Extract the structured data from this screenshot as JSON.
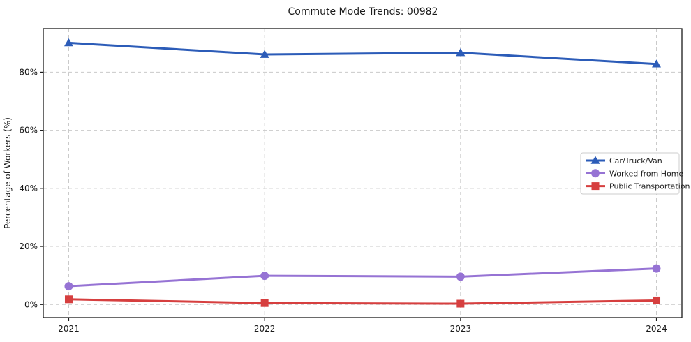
{
  "chart_data": {
    "type": "line",
    "title": "Commute Mode Trends: 00982",
    "xlabel": "",
    "ylabel": "Percentage of Workers (%)",
    "x": [
      2021,
      2022,
      2023,
      2024
    ],
    "x_tick_labels": [
      "2021",
      "2022",
      "2023",
      "2024"
    ],
    "y_ticks": [
      0,
      20,
      40,
      60,
      80
    ],
    "y_tick_labels": [
      "0%",
      "20%",
      "40%",
      "60%",
      "80%"
    ],
    "xlim": [
      2020.87,
      2024.13
    ],
    "ylim": [
      -4.5,
      95
    ],
    "grid": true,
    "grid_style": "dashed",
    "grid_color": "#c9c9c9",
    "spine_color": "#1a1a1a",
    "text_color": "#1a1a1a",
    "legend_position": "center-right",
    "legend_border_color": "#cccccc",
    "legend_background": "#ffffff",
    "series": [
      {
        "name": "Car/Truck/Van",
        "color": "#2c5cb8",
        "marker": "triangle",
        "values": [
          90.1,
          86.1,
          86.7,
          82.8
        ]
      },
      {
        "name": "Worked from Home",
        "color": "#9673d4",
        "marker": "circle",
        "values": [
          6.3,
          9.9,
          9.6,
          12.4
        ]
      },
      {
        "name": "Public Transportation",
        "color": "#d63f3f",
        "marker": "square",
        "values": [
          1.8,
          0.5,
          0.3,
          1.4
        ]
      }
    ]
  }
}
